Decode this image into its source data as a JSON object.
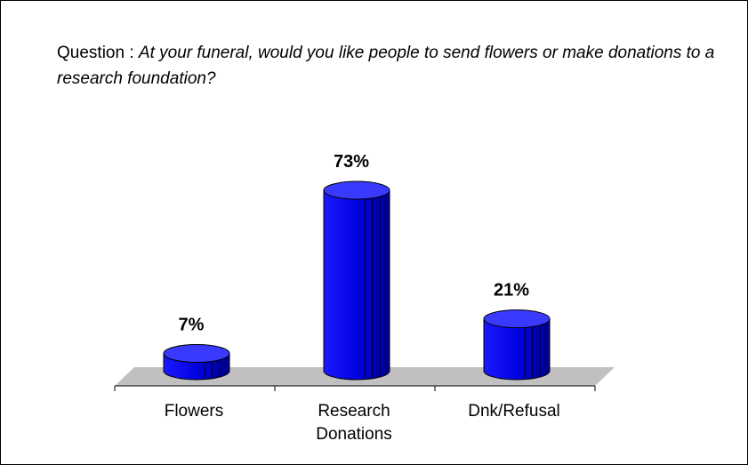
{
  "question": {
    "prefix": "Question : ",
    "text": "At your funeral, would you like people to send flowers or make donations to a research foundation?"
  },
  "colors": {
    "bar": "#0000ee",
    "bar_dark": "#00009a",
    "bar_top": "#3a3aff",
    "floor": "#c0c0c0"
  },
  "chart_data": {
    "type": "bar",
    "categories": [
      "Flowers",
      "Research Donations",
      "Dnk/Refusal"
    ],
    "category_lines": [
      [
        "Flowers"
      ],
      [
        "Research",
        "Donations"
      ],
      [
        "Dnk/Refusal"
      ]
    ],
    "values": [
      7,
      73,
      21
    ],
    "value_labels": [
      "7%",
      "73%",
      "21%"
    ],
    "unit": "%",
    "ylim": [
      0,
      80
    ],
    "grid": false,
    "legend": "none",
    "style": "3d-cylinder"
  }
}
